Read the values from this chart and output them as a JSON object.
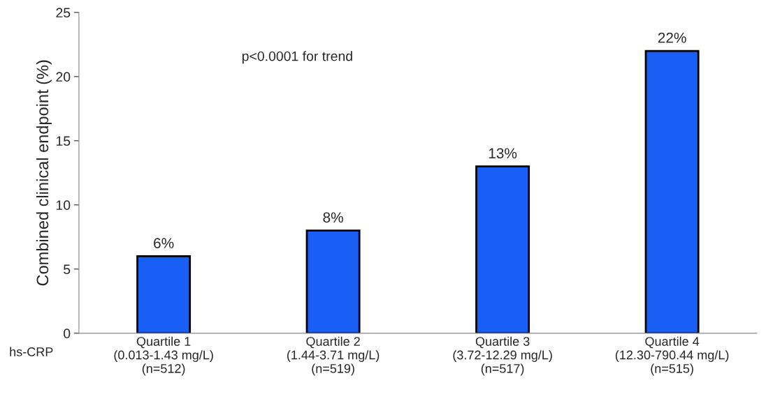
{
  "chart_data": {
    "type": "bar",
    "ylabel": "Combined clinical endpoint (%)",
    "categories": [
      "Quartile 1\n(0.013-1.43 mg/L)\n(n=512)",
      "Quartile 2\n(1.44-3.71 mg/L)\n(n=519)",
      "Quartile 3\n(3.72-12.29 mg/L)\n(n=517)",
      "Quartile 4\n(12.30-790.44 mg/L)\n(n=515)"
    ],
    "values": [
      6,
      8,
      13,
      22
    ],
    "value_labels": [
      "6%",
      "8%",
      "13%",
      "22%"
    ],
    "color": "#1a5ff5",
    "ylim": [
      0,
      25
    ],
    "yticks": [
      0,
      5,
      10,
      15,
      20,
      25
    ],
    "grid": false,
    "legend": false,
    "annotations": [
      "p<0.0001 for trend",
      "hs-CRP"
    ]
  }
}
